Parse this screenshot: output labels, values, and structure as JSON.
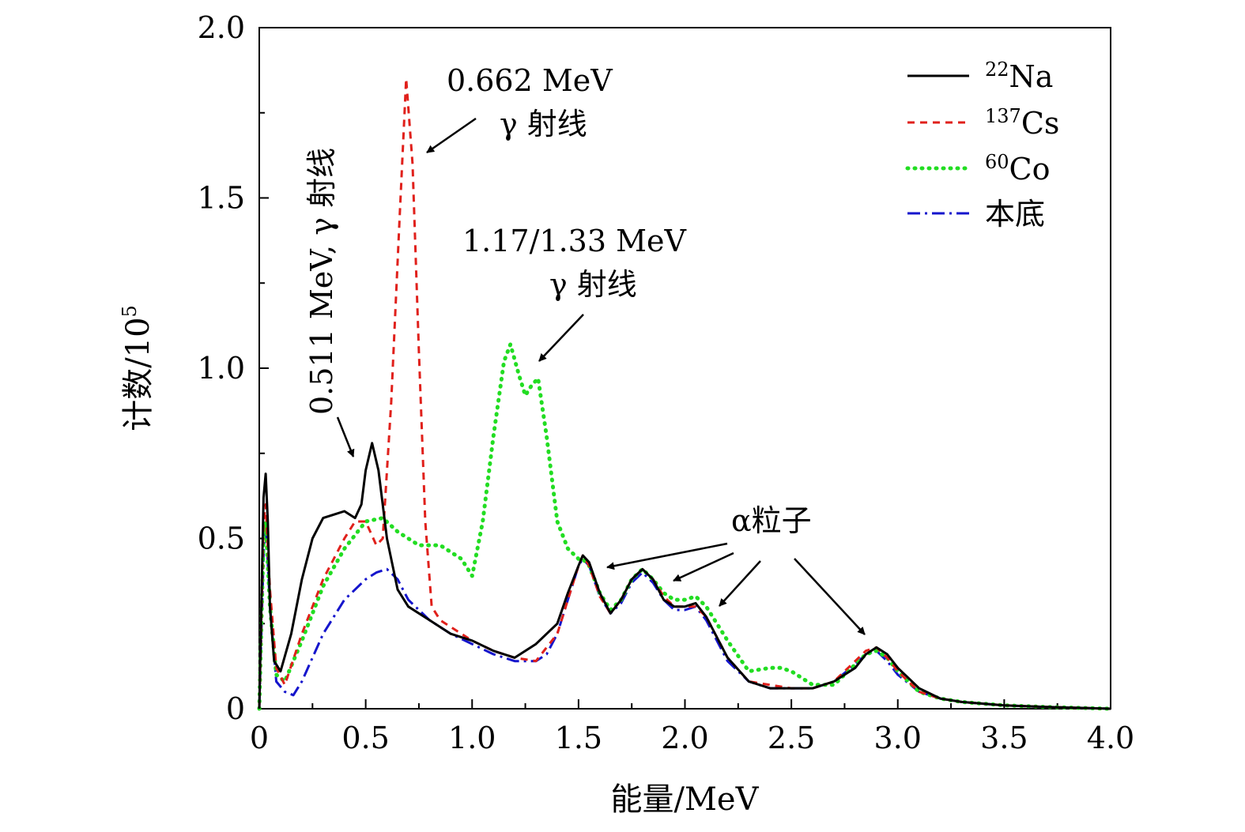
{
  "chart_data": {
    "type": "line",
    "xlabel": "能量/MeV",
    "ylabel": {
      "main": "计数/10",
      "sup": "5"
    },
    "xlim": [
      0,
      4.0
    ],
    "ylim": [
      0,
      2.0
    ],
    "x_ticks": [
      "0",
      "0.5",
      "1.0",
      "1.5",
      "2.0",
      "2.5",
      "3.0",
      "3.5",
      "4.0"
    ],
    "y_ticks": [
      "0",
      "0.5",
      "1.0",
      "1.5",
      "2.0"
    ],
    "legend_position": "top-right",
    "series": [
      {
        "key": "na22",
        "name_sup": "22",
        "name": "Na",
        "color": "#000000",
        "dash": "solid",
        "x": [
          0.0,
          0.02,
          0.03,
          0.04,
          0.05,
          0.07,
          0.1,
          0.15,
          0.2,
          0.25,
          0.3,
          0.35,
          0.4,
          0.45,
          0.48,
          0.5,
          0.53,
          0.56,
          0.6,
          0.65,
          0.7,
          0.8,
          0.9,
          1.0,
          1.1,
          1.2,
          1.3,
          1.4,
          1.45,
          1.5,
          1.52,
          1.55,
          1.6,
          1.65,
          1.7,
          1.75,
          1.8,
          1.85,
          1.9,
          1.95,
          2.0,
          2.05,
          2.1,
          2.2,
          2.3,
          2.4,
          2.5,
          2.6,
          2.7,
          2.8,
          2.85,
          2.9,
          2.95,
          3.0,
          3.1,
          3.2,
          3.3,
          3.5,
          3.7,
          4.0
        ],
        "y": [
          0.0,
          0.62,
          0.69,
          0.55,
          0.3,
          0.14,
          0.11,
          0.22,
          0.38,
          0.5,
          0.56,
          0.57,
          0.58,
          0.56,
          0.6,
          0.7,
          0.78,
          0.7,
          0.5,
          0.35,
          0.3,
          0.26,
          0.22,
          0.2,
          0.17,
          0.15,
          0.19,
          0.25,
          0.34,
          0.42,
          0.45,
          0.43,
          0.34,
          0.28,
          0.32,
          0.38,
          0.41,
          0.38,
          0.32,
          0.3,
          0.3,
          0.31,
          0.27,
          0.15,
          0.08,
          0.06,
          0.06,
          0.06,
          0.08,
          0.12,
          0.16,
          0.18,
          0.16,
          0.12,
          0.06,
          0.03,
          0.02,
          0.01,
          0.005,
          0.0
        ]
      },
      {
        "key": "cs137",
        "name_sup": "137",
        "name": "Cs",
        "color": "#e0201b",
        "dash": "dashed",
        "x": [
          0.0,
          0.02,
          0.03,
          0.05,
          0.08,
          0.12,
          0.2,
          0.3,
          0.4,
          0.45,
          0.5,
          0.55,
          0.58,
          0.62,
          0.66,
          0.69,
          0.72,
          0.75,
          0.78,
          0.81,
          0.85,
          0.9,
          1.0,
          1.1,
          1.2,
          1.3,
          1.4,
          1.45,
          1.5,
          1.52,
          1.55,
          1.6,
          1.65,
          1.7,
          1.75,
          1.8,
          1.85,
          1.9,
          1.95,
          2.0,
          2.05,
          2.1,
          2.2,
          2.3,
          2.4,
          2.5,
          2.6,
          2.7,
          2.8,
          2.85,
          2.9,
          2.95,
          3.0,
          3.1,
          3.2,
          3.3,
          3.5,
          3.7,
          4.0
        ],
        "y": [
          0.0,
          0.55,
          0.6,
          0.35,
          0.12,
          0.07,
          0.22,
          0.38,
          0.5,
          0.55,
          0.55,
          0.48,
          0.5,
          0.9,
          1.45,
          1.85,
          1.6,
          1.05,
          0.55,
          0.3,
          0.26,
          0.24,
          0.2,
          0.17,
          0.15,
          0.14,
          0.22,
          0.32,
          0.42,
          0.45,
          0.42,
          0.33,
          0.28,
          0.32,
          0.38,
          0.41,
          0.38,
          0.33,
          0.3,
          0.3,
          0.3,
          0.27,
          0.15,
          0.08,
          0.07,
          0.06,
          0.06,
          0.08,
          0.14,
          0.17,
          0.18,
          0.15,
          0.11,
          0.05,
          0.03,
          0.02,
          0.01,
          0.005,
          0.0
        ]
      },
      {
        "key": "co60",
        "name_sup": "60",
        "name": "Co",
        "color": "#22dd22",
        "dash": "dotted",
        "x": [
          0.0,
          0.02,
          0.03,
          0.05,
          0.08,
          0.12,
          0.2,
          0.3,
          0.4,
          0.5,
          0.58,
          0.65,
          0.75,
          0.85,
          0.95,
          1.0,
          1.05,
          1.1,
          1.15,
          1.18,
          1.22,
          1.25,
          1.28,
          1.31,
          1.35,
          1.4,
          1.45,
          1.5,
          1.52,
          1.55,
          1.6,
          1.65,
          1.7,
          1.75,
          1.8,
          1.85,
          1.9,
          1.95,
          2.0,
          2.05,
          2.1,
          2.2,
          2.3,
          2.4,
          2.45,
          2.5,
          2.6,
          2.7,
          2.8,
          2.85,
          2.9,
          2.95,
          3.0,
          3.1,
          3.2,
          3.3,
          3.5,
          3.7,
          4.0
        ],
        "y": [
          0.0,
          0.5,
          0.55,
          0.3,
          0.1,
          0.08,
          0.2,
          0.36,
          0.47,
          0.55,
          0.56,
          0.52,
          0.48,
          0.48,
          0.44,
          0.39,
          0.55,
          0.8,
          1.02,
          1.07,
          0.98,
          0.92,
          0.95,
          0.97,
          0.8,
          0.55,
          0.47,
          0.44,
          0.44,
          0.42,
          0.34,
          0.29,
          0.32,
          0.38,
          0.41,
          0.38,
          0.34,
          0.32,
          0.32,
          0.33,
          0.3,
          0.2,
          0.11,
          0.12,
          0.12,
          0.11,
          0.07,
          0.07,
          0.13,
          0.16,
          0.17,
          0.15,
          0.11,
          0.05,
          0.03,
          0.02,
          0.01,
          0.005,
          0.0
        ]
      },
      {
        "key": "bg",
        "name_sup": "",
        "name": "本底",
        "color": "#1515cc",
        "dash": "dashdot",
        "x": [
          0.0,
          0.02,
          0.03,
          0.05,
          0.08,
          0.12,
          0.16,
          0.2,
          0.3,
          0.4,
          0.5,
          0.55,
          0.6,
          0.65,
          0.7,
          0.8,
          0.9,
          1.0,
          1.1,
          1.2,
          1.3,
          1.35,
          1.4,
          1.45,
          1.5,
          1.52,
          1.55,
          1.6,
          1.65,
          1.7,
          1.75,
          1.8,
          1.85,
          1.9,
          1.95,
          2.0,
          2.05,
          2.1,
          2.2,
          2.3,
          2.4,
          2.5,
          2.6,
          2.7,
          2.8,
          2.85,
          2.9,
          2.95,
          3.0,
          3.1,
          3.2,
          3.3,
          3.5,
          3.7,
          4.0
        ],
        "y": [
          0.0,
          0.45,
          0.55,
          0.3,
          0.08,
          0.05,
          0.04,
          0.08,
          0.22,
          0.32,
          0.38,
          0.4,
          0.41,
          0.38,
          0.32,
          0.26,
          0.22,
          0.19,
          0.16,
          0.14,
          0.14,
          0.16,
          0.22,
          0.32,
          0.42,
          0.44,
          0.42,
          0.33,
          0.28,
          0.31,
          0.37,
          0.4,
          0.37,
          0.32,
          0.29,
          0.29,
          0.3,
          0.26,
          0.14,
          0.08,
          0.06,
          0.06,
          0.06,
          0.08,
          0.13,
          0.16,
          0.17,
          0.14,
          0.1,
          0.05,
          0.03,
          0.02,
          0.01,
          0.005,
          0.0
        ]
      }
    ],
    "annotations": [
      {
        "key": "cs_peak",
        "lines": [
          "0.662 MeV",
          "γ 射线"
        ]
      },
      {
        "key": "co_peak",
        "lines": [
          "1.17/1.33 MeV",
          "γ 射线"
        ]
      },
      {
        "key": "na_peak",
        "text": "0.511 MeV, γ 射线"
      },
      {
        "key": "alpha",
        "text": "α粒子"
      }
    ]
  }
}
